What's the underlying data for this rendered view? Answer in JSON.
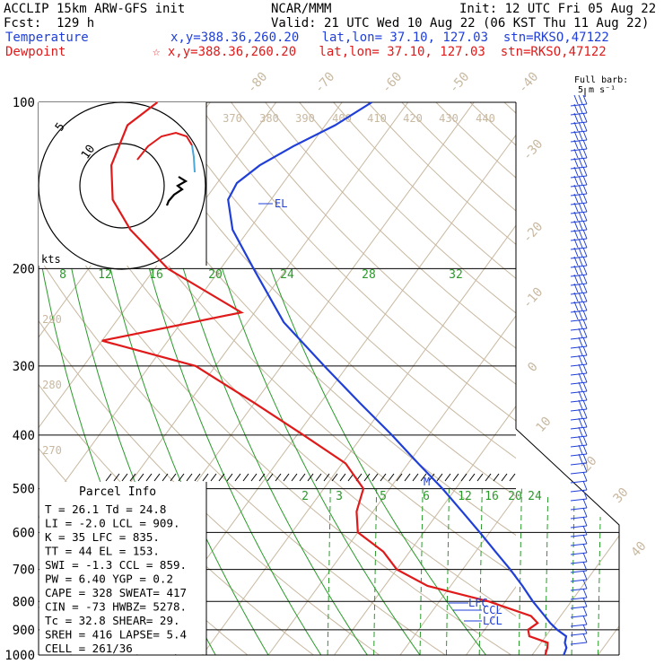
{
  "header": {
    "title_left": "ACCLIP 15km ARW-GFS init",
    "title_center": "NCAR/MMM",
    "init": "Init: 12 UTC Fri 05 Aug 22",
    "fcst": "Fcst:  129 h",
    "valid": "Valid: 21 UTC Wed 10 Aug 22 (06 KST Thu 11 Aug 22)",
    "temp_label": "Temperature",
    "temp_info": "x,y=388.36,260.20   lat,lon= 37.10, 127.03  stn=RKSO,47122",
    "dew_label": "Dewpoint",
    "dew_info": "☆ x,y=388.36,260.20   lat,lon= 37.10, 127.03  stn=RKSO,47122",
    "barb_label_1": "Full barb:",
    "barb_label_2": "5 m s⁻¹"
  },
  "colors": {
    "temperature": "#1f3fd8",
    "dewpoint": "#e01a1a",
    "isotherm": "#c8b8a0",
    "mixing_ratio": "#2a9a2a"
  },
  "chart_data": {
    "type": "line",
    "title": "ACCLIP 15km ARW-GFS init",
    "y_axis": "pressure (hPa, log)",
    "pressure_ticks": [
      100,
      200,
      300,
      400,
      500,
      600,
      700,
      800,
      900,
      1000
    ],
    "isotherm_labels": [
      "-80",
      "-70",
      "-60",
      "-50",
      "-40",
      "-30",
      "-20",
      "-10",
      "0",
      "10",
      "20",
      "30",
      "40"
    ],
    "theta_labels": [
      "370",
      "380",
      "390",
      "400",
      "410",
      "420",
      "430",
      "440",
      "290",
      "280",
      "270"
    ],
    "upper_mixing_labels": [
      "8",
      "12",
      "16",
      "20",
      "24",
      "28",
      "32"
    ],
    "lower_mixing_labels": [
      "2",
      "3",
      "5",
      "6",
      "8",
      "12",
      "16",
      "20",
      "24"
    ],
    "series": [
      {
        "name": "Temperature",
        "pressure": [
          1000,
          970,
          950,
          925,
          900,
          875,
          850,
          800,
          750,
          700,
          650,
          600,
          550,
          500,
          450,
          400,
          350,
          300,
          250,
          200,
          170,
          150,
          140,
          130,
          120,
          110,
          100
        ],
        "temp_c": [
          24.8,
          24.4,
          23.6,
          23.1,
          21.0,
          19.2,
          17.6,
          14.2,
          10.9,
          7.2,
          3.0,
          -1.5,
          -6.5,
          -12.0,
          -18.5,
          -25.6,
          -34.0,
          -43.5,
          -54.5,
          -65.0,
          -72.5,
          -76.5,
          -77.0,
          -75.5,
          -72.5,
          -68.5,
          -65.5
        ]
      },
      {
        "name": "Dewpoint",
        "pressure": [
          1000,
          970,
          950,
          925,
          900,
          875,
          850,
          800,
          750,
          700,
          650,
          600,
          550,
          500,
          450,
          400,
          350,
          300,
          270,
          240,
          200,
          170,
          150,
          130,
          110,
          100
        ],
        "temp_c": [
          22.0,
          21.5,
          21.0,
          17.5,
          16.6,
          17.3,
          15.5,
          7.5,
          -3.5,
          -10.0,
          -14.0,
          -20.0,
          -22.5,
          -24.0,
          -29.5,
          -39.0,
          -50.0,
          -63.0,
          -80.0,
          -62.0,
          -78.0,
          -88.0,
          -94.0,
          -98.0,
          -100.0,
          -98.0
        ]
      }
    ],
    "markers": [
      "EL",
      "M",
      "LFC",
      "CCL",
      "LCL"
    ],
    "hodograph_labels": [
      "5",
      "10",
      "kts"
    ]
  },
  "parcel_info": {
    "title": "Parcel  Info",
    "rows": [
      "T  =    26.1  Td =  24.8",
      "LI =   -2.0  LCL =  909.",
      "K  =     35  LFC =  835.",
      "TT =     44  EL  =  153.",
      "SWI =  -1.3  CCL =  859.",
      "PW =   6.40  YGP =   0.2",
      "CAPE =   328  SWEAT=  417",
      "CIN =   -73  HWBZ= 5278.",
      "Tc =   32.8  SHEAR=  29.",
      "SREH =  416  LAPSE=  5.4",
      "CELL = 261/36"
    ]
  }
}
